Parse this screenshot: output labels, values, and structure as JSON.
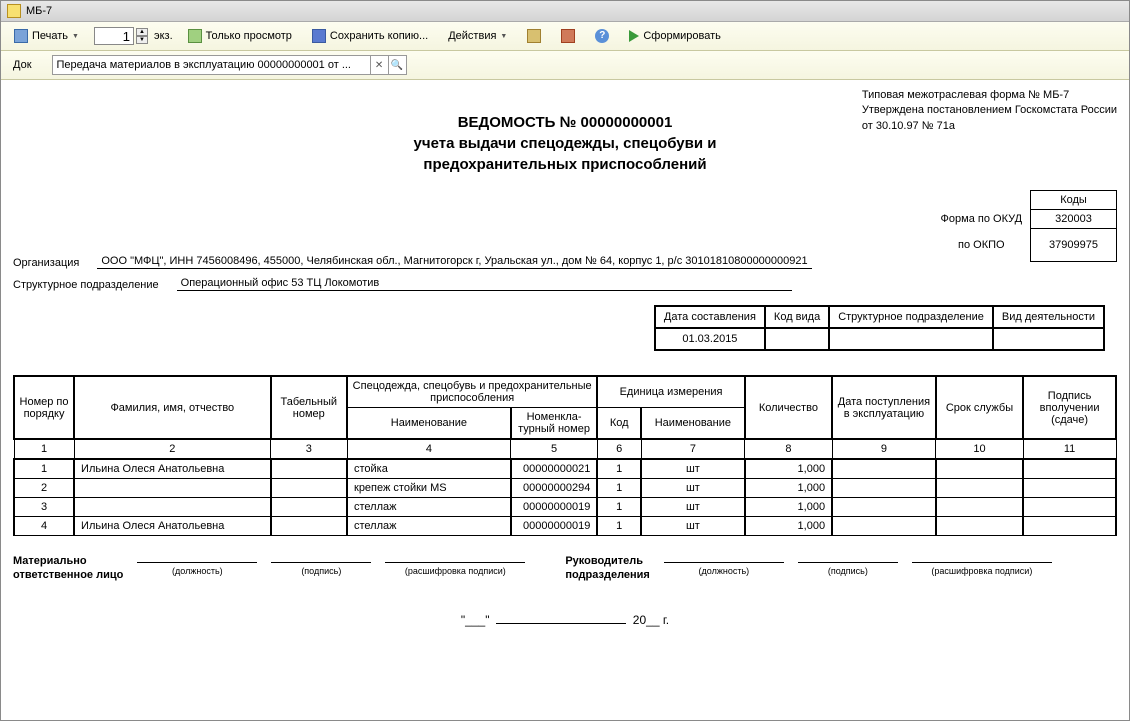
{
  "window": {
    "title": "МБ-7"
  },
  "toolbar": {
    "print": "Печать",
    "copies": "1",
    "copies_suffix": "экз.",
    "view_only": "Только просмотр",
    "save_copy": "Сохранить копию...",
    "actions": "Действия",
    "form": "Сформировать"
  },
  "docbar": {
    "label": "Док",
    "value": "Передача материалов в эксплуатацию 00000000001 от ..."
  },
  "corner": {
    "l1": "Типовая межотраслевая форма № МБ-7",
    "l2": "Утверждена постановлением Госкомстата России",
    "l3": "от 30.10.97 № 71а"
  },
  "title": {
    "l1": "ВЕДОМОСТЬ № 00000000001",
    "l2": "учета выдачи спецодежды, спецобуви и",
    "l3": "предохранительных приспособлений"
  },
  "codes": {
    "header": "Коды",
    "okud_label": "Форма по ОКУД",
    "okud": "320003",
    "okpo_label": "по ОКПО",
    "okpo": "37909975"
  },
  "org": {
    "org_label": "Организация",
    "org_value": "ООО \"МФЦ\", ИНН 7456008496, 455000, Челябинская обл., Магнитогорск г, Уральская ул., дом № 64, корпус 1, р/с 30101810800000000921",
    "dept_label": "Структурное подразделение",
    "dept_value": "Операционный офис 53 ТЦ Локомотив"
  },
  "meta": {
    "h1": "Дата составления",
    "h2": "Код вида",
    "h3": "Структурное подразделение",
    "h4": "Вид деятельности",
    "v1": "01.03.2015",
    "v2": "",
    "v3": "",
    "v4": ""
  },
  "table": {
    "h_num": "Номер по порядку",
    "h_fio": "Фамилия, имя, отчество",
    "h_tab": "Табельный номер",
    "h_spec": "Спецодежда, спецобувь и предохранительные приспособления",
    "h_name": "Наименование",
    "h_nom": "Номенкла-турный номер",
    "h_unit": "Единица измерения",
    "h_code": "Код",
    "h_uname": "Наименование",
    "h_qty": "Количество",
    "h_date": "Дата поступления в эксплуатацию",
    "h_life": "Срок службы",
    "h_sign": "Подпись вполучении (сдаче)",
    "rows": [
      {
        "n": "1",
        "fio": "Ильина Олеся Анатольевна",
        "tab": "",
        "name": "стойка",
        "nom": "00000000021",
        "code": "1",
        "uname": "шт",
        "qty": "1,000",
        "date": "",
        "life": "",
        "sign": ""
      },
      {
        "n": "2",
        "fio": "",
        "tab": "",
        "name": "крепеж стойки MS",
        "nom": "00000000294",
        "code": "1",
        "uname": "шт",
        "qty": "1,000",
        "date": "",
        "life": "",
        "sign": ""
      },
      {
        "n": "3",
        "fio": "",
        "tab": "",
        "name": "стеллаж",
        "nom": "00000000019",
        "code": "1",
        "uname": "шт",
        "qty": "1,000",
        "date": "",
        "life": "",
        "sign": ""
      },
      {
        "n": "4",
        "fio": "Ильина Олеся Анатольевна",
        "tab": "",
        "name": "стеллаж",
        "nom": "00000000019",
        "code": "1",
        "uname": "шт",
        "qty": "1,000",
        "date": "",
        "life": "",
        "sign": ""
      }
    ]
  },
  "sig": {
    "left_label": "Материально\nответственное лицо",
    "right_label": "Руководитель\nподразделения",
    "c1": "(должность)",
    "c2": "(подпись)",
    "c3": "(расшифровка подписи)"
  },
  "date": {
    "q": "\"___\"",
    "y": "20__ г."
  }
}
